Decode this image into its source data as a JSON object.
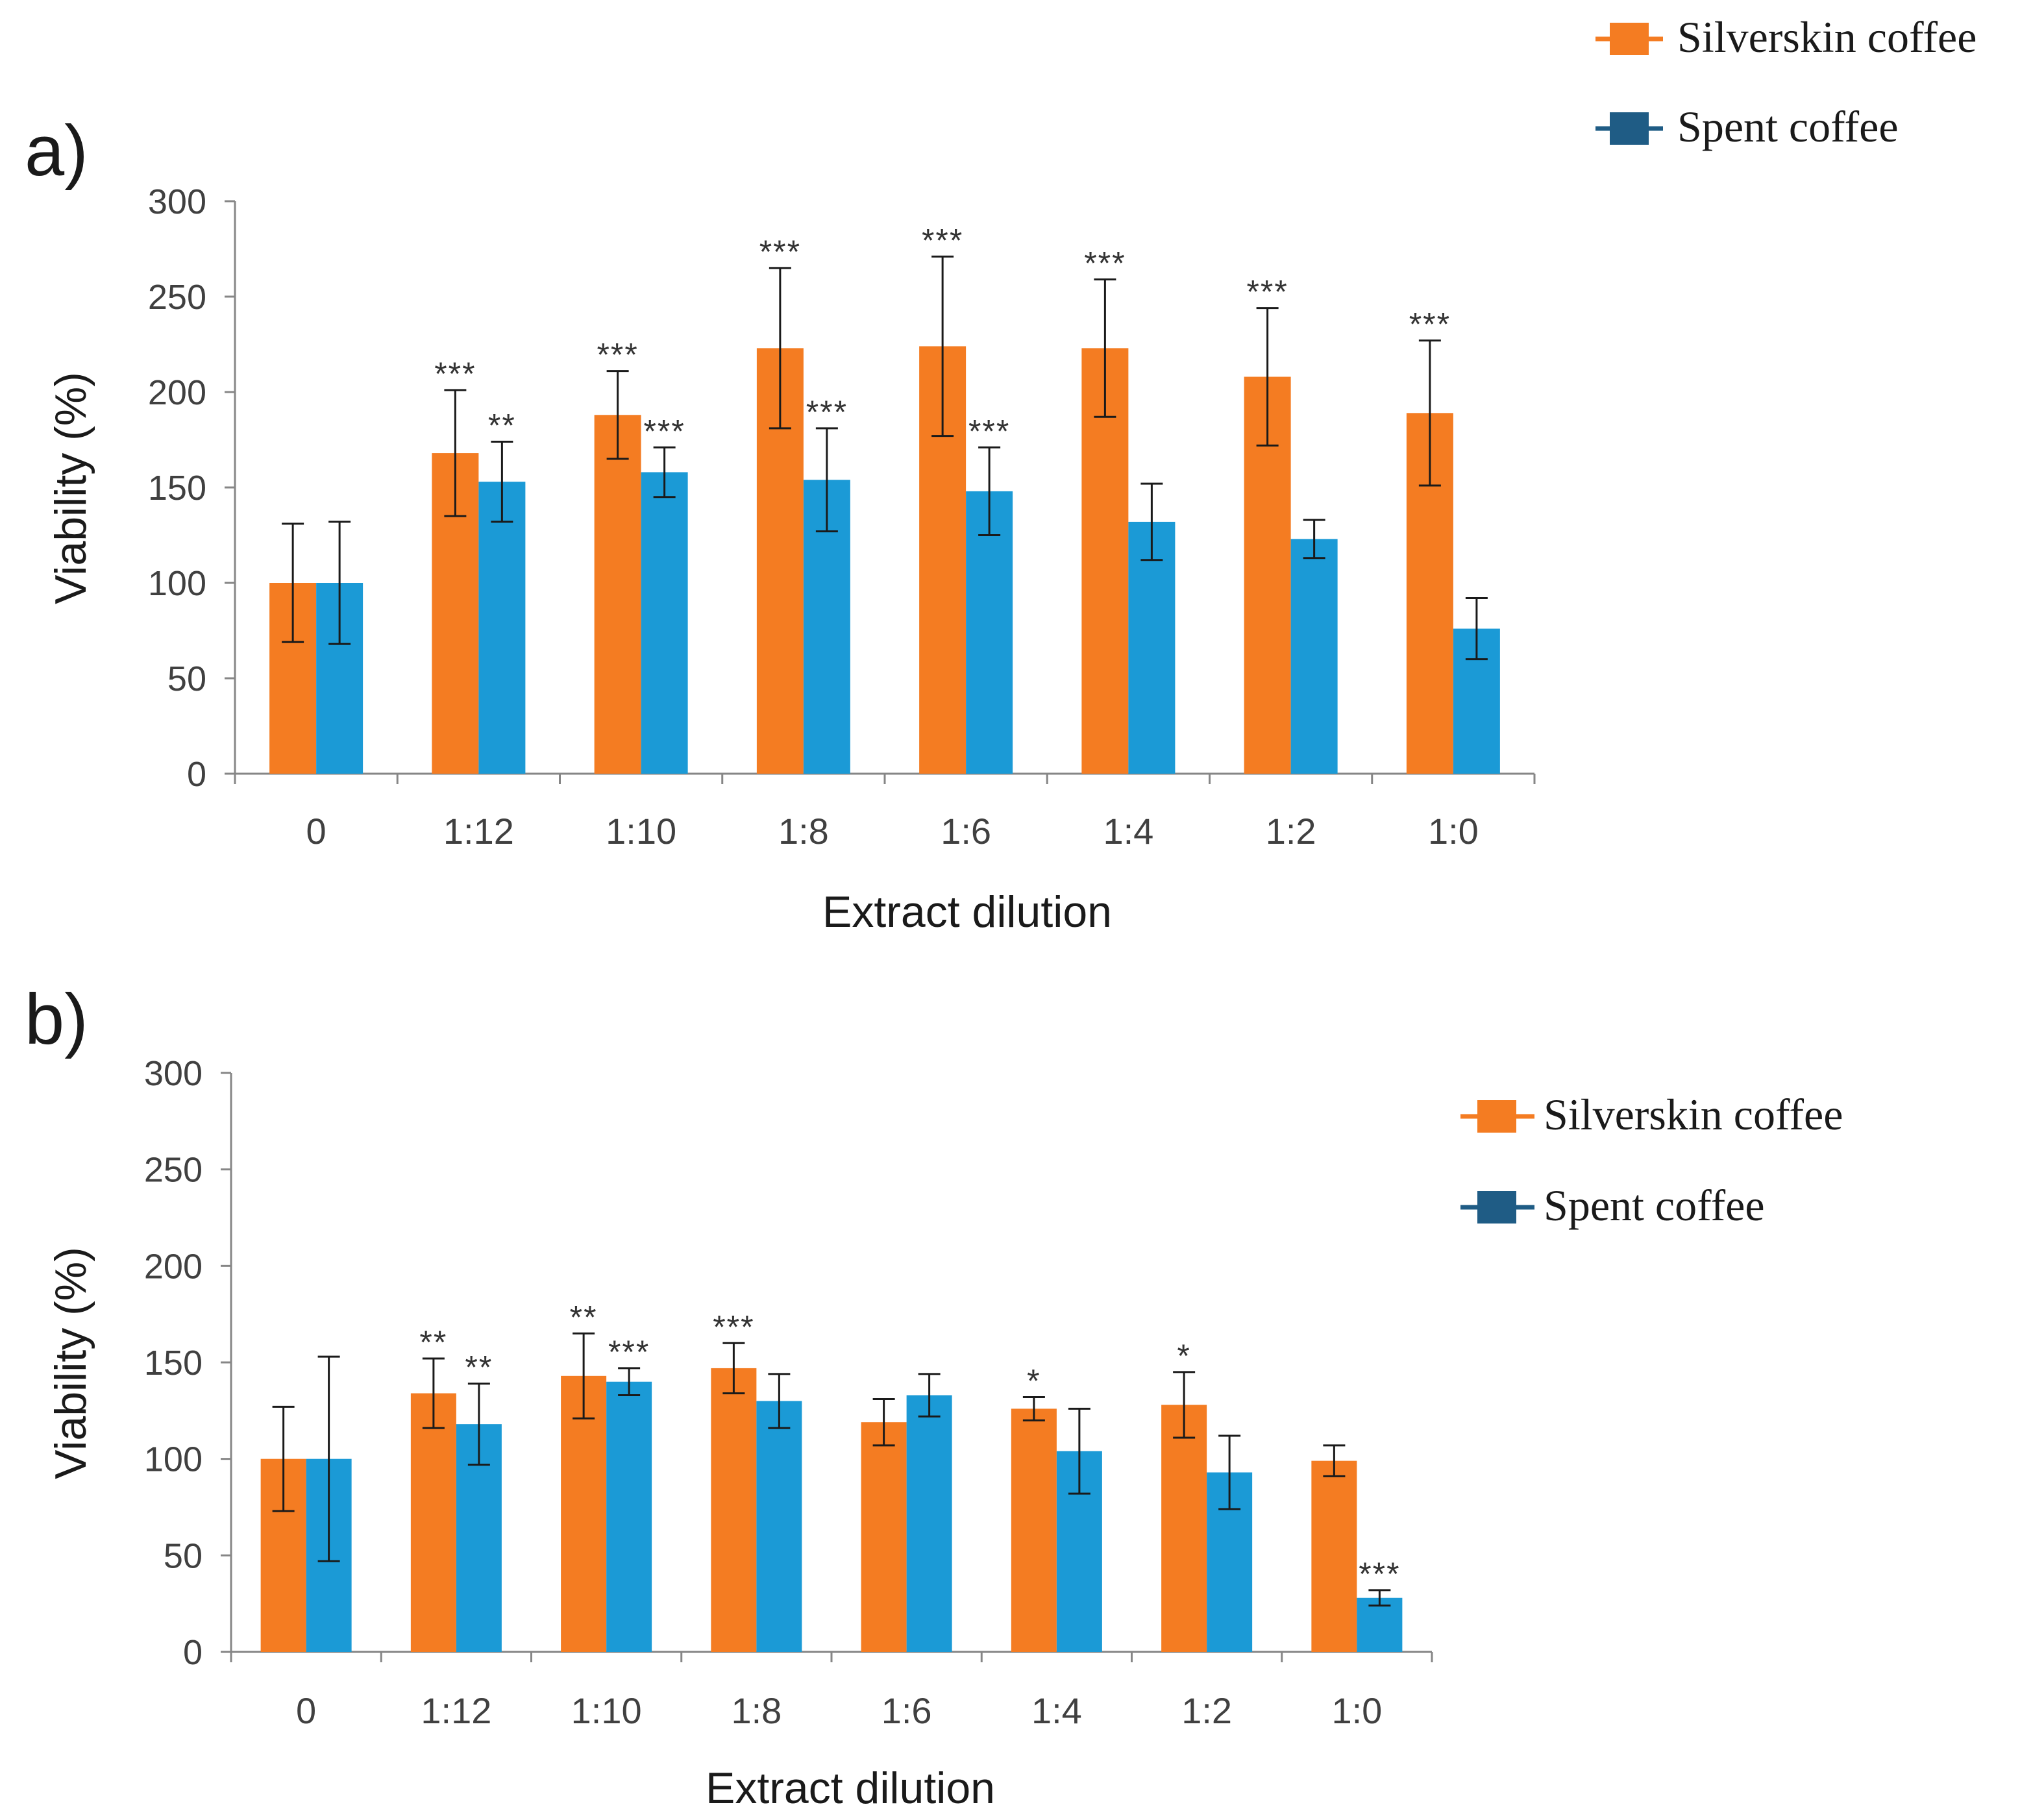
{
  "colors": {
    "silverskin": "#F47C22",
    "spent": "#1B9AD6",
    "spent_legend": "#1F5C85",
    "axis": "#868686",
    "text": "#404040",
    "error": "#1a1a1a"
  },
  "chart_data": [
    {
      "type": "bar",
      "panel_label": "a)",
      "xlabel": "Extract dilution",
      "ylabel": "Viability (%)",
      "ylim": [
        0,
        300
      ],
      "yticks": [
        0,
        50,
        100,
        150,
        200,
        250,
        300
      ],
      "categories": [
        "0",
        "1:12",
        "1:10",
        "1:8",
        "1:6",
        "1:4",
        "1:2",
        "1:0"
      ],
      "legend_position": "top-right",
      "series": [
        {
          "name": "Silverskin coffee",
          "values": [
            100,
            168,
            188,
            223,
            224,
            223,
            208,
            189
          ],
          "errors": [
            31,
            33,
            23,
            42,
            47,
            36,
            36,
            38
          ],
          "significance": [
            "",
            "***",
            "***",
            "***",
            "***",
            "***",
            "***",
            "***"
          ]
        },
        {
          "name": "Spent coffee",
          "values": [
            100,
            153,
            158,
            154,
            148,
            132,
            123,
            76
          ],
          "errors": [
            32,
            21,
            13,
            27,
            23,
            20,
            10,
            16
          ],
          "significance": [
            "",
            "**",
            "***",
            "***",
            "***",
            "",
            "",
            ""
          ]
        }
      ]
    },
    {
      "type": "bar",
      "panel_label": "b)",
      "xlabel": "Extract dilution",
      "ylabel": "Viability (%)",
      "ylim": [
        0,
        300
      ],
      "yticks": [
        0,
        50,
        100,
        150,
        200,
        250,
        300
      ],
      "categories": [
        "0",
        "1:12",
        "1:10",
        "1:8",
        "1:6",
        "1:4",
        "1:2",
        "1:0"
      ],
      "legend_position": "right",
      "series": [
        {
          "name": "Silverskin coffee",
          "values": [
            100,
            134,
            143,
            147,
            119,
            126,
            128,
            99
          ],
          "errors": [
            27,
            18,
            22,
            13,
            12,
            6,
            17,
            8
          ],
          "significance": [
            "",
            "**",
            "**",
            "***",
            "",
            "*",
            "*",
            ""
          ]
        },
        {
          "name": "Spent coffee",
          "values": [
            100,
            118,
            140,
            130,
            133,
            104,
            93,
            28
          ],
          "errors": [
            53,
            21,
            7,
            14,
            11,
            22,
            19,
            4
          ],
          "significance": [
            "",
            "**",
            "***",
            "",
            "",
            "",
            "",
            "***"
          ]
        }
      ]
    }
  ]
}
